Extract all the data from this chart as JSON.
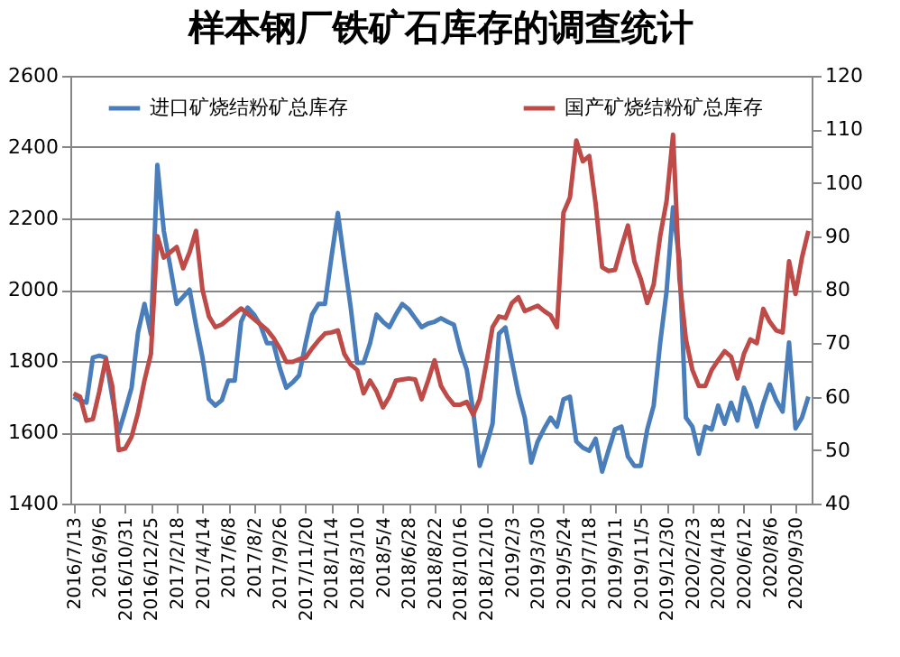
{
  "chart_data": {
    "type": "line",
    "title": "样本钢厂铁矿石库存的调查统计",
    "categories": [
      "2016/7/13",
      null,
      null,
      null,
      "2016/9/6",
      null,
      null,
      null,
      "2016/10/31",
      null,
      null,
      null,
      "2016/12/25",
      null,
      null,
      null,
      "2017/2/18",
      null,
      null,
      null,
      "2017/4/14",
      null,
      null,
      null,
      "2017/6/8",
      null,
      null,
      null,
      "2017/8/2",
      null,
      null,
      null,
      "2017/9/26",
      null,
      null,
      null,
      "2017/11/20",
      null,
      null,
      null,
      "2018/1/14",
      null,
      null,
      null,
      "2018/3/10",
      null,
      null,
      null,
      "2018/5/4",
      null,
      null,
      null,
      "2018/6/28",
      null,
      null,
      null,
      "2018/8/22",
      null,
      null,
      null,
      "2018/10/16",
      null,
      null,
      null,
      "2018/12/10",
      null,
      null,
      null,
      "2019/2/3",
      null,
      null,
      null,
      "2019/3/30",
      null,
      null,
      null,
      "2019/5/24",
      null,
      null,
      null,
      "2019/7/18",
      null,
      null,
      null,
      "2019/9/11",
      null,
      null,
      null,
      "2019/11/5",
      null,
      null,
      null,
      "2019/12/30",
      null,
      null,
      null,
      "2020/2/23",
      null,
      null,
      null,
      "2020/4/18",
      null,
      null,
      null,
      "2020/6/12",
      null,
      null,
      null,
      "2020/8/6",
      null,
      null,
      null,
      "2020/9/30",
      null,
      null
    ],
    "series": [
      {
        "name": "进口矿烧结粉矿总库存",
        "color": "#4a7ebb",
        "values": [
          1700,
          1690,
          1683,
          1810,
          1815,
          1810,
          1700,
          1600,
          1660,
          1725,
          1880,
          1960,
          1875,
          2350,
          2165,
          2065,
          1960,
          1980,
          2000,
          1900,
          1810,
          1693,
          1675,
          1690,
          1745,
          1745,
          1910,
          1950,
          1930,
          1900,
          1850,
          1850,
          1780,
          1725,
          1740,
          1760,
          1850,
          1930,
          1960,
          1960,
          2090,
          2215,
          2080,
          1950,
          1795,
          1795,
          1850,
          1930,
          1910,
          1895,
          1930,
          1960,
          1945,
          1920,
          1895,
          1905,
          1910,
          1920,
          1910,
          1902,
          1830,
          1776,
          1658,
          1506,
          1560,
          1624,
          1877,
          1894,
          1800,
          1709,
          1641,
          1515,
          1574,
          1610,
          1641,
          1616,
          1692,
          1700,
          1574,
          1557,
          1548,
          1582,
          1490,
          1550,
          1608,
          1616,
          1532,
          1506,
          1506,
          1608,
          1675,
          1850,
          1996,
          2231,
          2080,
          1641,
          1616,
          1540,
          1616,
          1608,
          1675,
          1624,
          1683,
          1633,
          1725,
          1680,
          1616,
          1680,
          1734,
          1690,
          1658,
          1852,
          1611,
          1641,
          1700
        ]
      },
      {
        "name": "国产矿烧结粉矿总库存",
        "color": "#be4b48",
        "axis": "y2",
        "values": [
          60.6,
          60,
          55.5,
          55.8,
          61,
          67,
          62,
          50,
          50.3,
          52.5,
          57,
          63,
          68,
          90,
          86,
          87,
          88,
          84,
          87,
          91,
          80,
          75,
          73,
          73.5,
          74.5,
          75.5,
          76.5,
          75.5,
          74.5,
          73.5,
          72.5,
          71,
          69,
          66.5,
          66.5,
          67,
          67.3,
          69,
          70.5,
          71.8,
          72,
          72.4,
          68,
          66,
          65,
          60.6,
          63,
          61,
          58,
          60,
          63,
          63.2,
          63.4,
          63.2,
          59.5,
          63,
          66.8,
          62,
          60,
          58.5,
          58.5,
          59,
          56.6,
          59.5,
          66,
          73,
          75,
          74.7,
          77.5,
          78.6,
          76,
          76.5,
          77,
          76,
          75.2,
          73,
          94.4,
          97.2,
          107.9,
          104,
          105,
          96,
          84.2,
          83.5,
          83.7,
          88,
          92,
          85.3,
          82,
          77.5,
          81,
          90,
          96.6,
          109,
          82,
          70.7,
          65,
          62,
          62,
          65,
          66.8,
          68.5,
          67.5,
          63.4,
          68,
          70.7,
          70,
          76.4,
          74,
          72.4,
          72,
          85.3,
          79.2,
          86,
          91
        ]
      }
    ],
    "ylim": [
      1400,
      2600
    ],
    "yticks": [
      1400,
      1600,
      1800,
      2000,
      2200,
      2400,
      2600
    ],
    "y2lim": [
      40,
      120
    ],
    "y2ticks": [
      40,
      50,
      60,
      70,
      80,
      90,
      100,
      110,
      120
    ],
    "grid": "y",
    "legend": "top",
    "marker": "none",
    "line_style": "solid"
  }
}
